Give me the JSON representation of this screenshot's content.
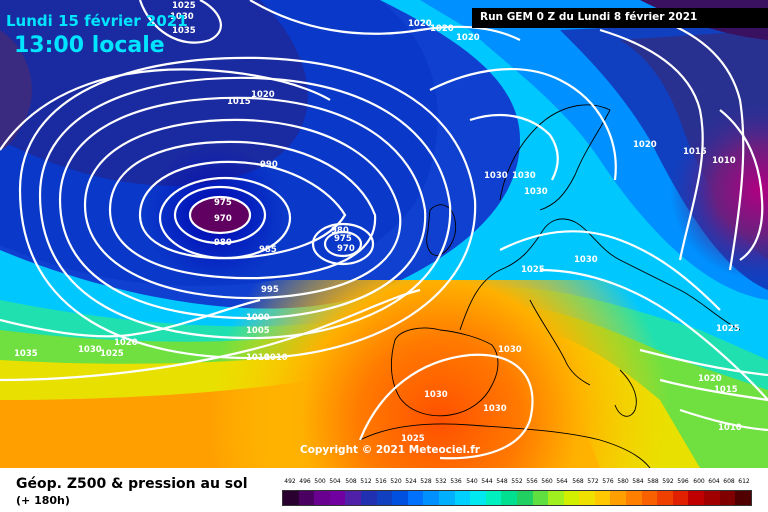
{
  "header": {
    "date": "Lundi 15 février 2021",
    "local_time": "13:00 locale",
    "run": "Run GEM 0 Z du Lundi 8 février 2021"
  },
  "copyright": "Copyright © 2021 Meteociel.fr",
  "footer": {
    "product": "Géop. Z500 & pression au sol",
    "forecast_hour": "(+ 180h)"
  },
  "legend": {
    "ticks": [
      "492",
      "496",
      "500",
      "504",
      "508",
      "512",
      "516",
      "520",
      "524",
      "528",
      "532",
      "536",
      "540",
      "544",
      "548",
      "552",
      "556",
      "560",
      "564",
      "568",
      "572",
      "576",
      "580",
      "584",
      "588",
      "592",
      "596",
      "600",
      "604",
      "608",
      "612"
    ],
    "colors": [
      "#2a0030",
      "#4a0060",
      "#6a0090",
      "#7000a0",
      "#5020a8",
      "#2030b0",
      "#1040c0",
      "#0050e0",
      "#0070ff",
      "#0090ff",
      "#00b0ff",
      "#00d0ff",
      "#00e8f0",
      "#00f0c0",
      "#00e090",
      "#20d060",
      "#60e040",
      "#a0f020",
      "#d0f000",
      "#f0e000",
      "#ffc800",
      "#ffa000",
      "#ff8000",
      "#f86000",
      "#f04000",
      "#e02000",
      "#c00000",
      "#a00000",
      "#800000",
      "#500000"
    ]
  },
  "pressure_labels": [
    "1025",
    "1030",
    "1035",
    "1020",
    "1020",
    "1020",
    "1015",
    "1020",
    "990",
    "975",
    "970",
    "980",
    "985",
    "980",
    "975",
    "970",
    "995",
    "1000",
    "1005",
    "1010",
    "1010",
    "1020",
    "1030",
    "1025",
    "1035",
    "1030",
    "1030",
    "1025",
    "1030",
    "1030",
    "1030",
    "1030",
    "1030",
    "1025",
    "1020",
    "1015",
    "1010",
    "1020",
    "1015",
    "1010",
    "1025"
  ]
}
